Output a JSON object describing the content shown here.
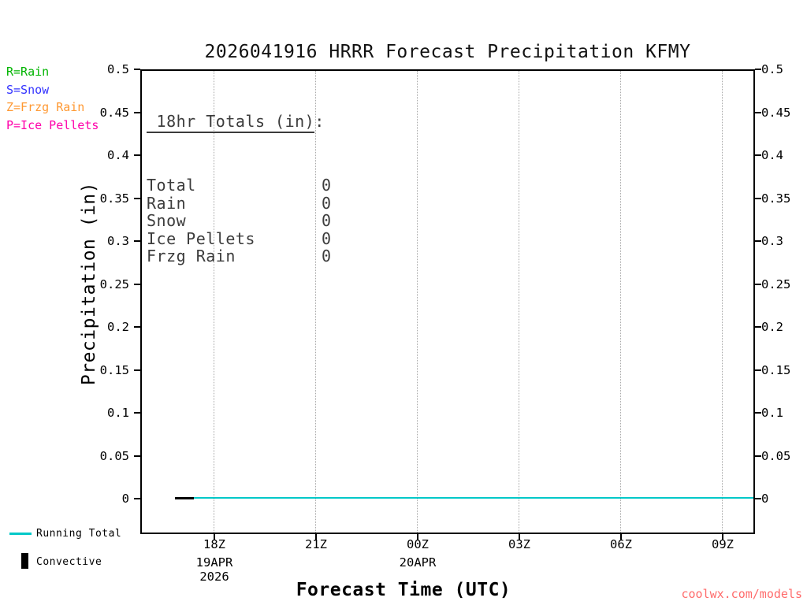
{
  "title": "2026041916 HRRR Forecast Precipitation KFMY",
  "watermark": "coolwx.com/models",
  "colors": {
    "running_total": "#00c8c8",
    "convective": "#000000",
    "rain": "#00b400",
    "snow": "#3333ff",
    "frzg_rain": "#ff9933",
    "ice_pellets": "#ff00aa",
    "watermark": "#ff6b6b",
    "grid": "#a8a8a8"
  },
  "legend_top": [
    {
      "label": "R=Rain",
      "color": "#00b400"
    },
    {
      "label": "S=Snow",
      "color": "#3333ff"
    },
    {
      "label": "Z=Frzg Rain",
      "color": "#ff9933"
    },
    {
      "label": "P=Ice Pellets",
      "color": "#ff00aa"
    }
  ],
  "totals_box": {
    "title": " 18hr Totals (in)",
    "colon": ":",
    "rows": [
      {
        "label": "Total",
        "value": "0"
      },
      {
        "label": "Rain",
        "value": "0"
      },
      {
        "label": "Snow",
        "value": "0"
      },
      {
        "label": "Ice Pellets",
        "value": "0"
      },
      {
        "label": "Frzg Rain",
        "value": "0"
      }
    ]
  },
  "axes": {
    "ylabel": "Precipitation (in)",
    "xlabel": "Forecast Time (UTC)",
    "yticks": [
      "0",
      "0.05",
      "0.1",
      "0.15",
      "0.2",
      "0.25",
      "0.3",
      "0.35",
      "0.4",
      "0.45",
      "0.5"
    ],
    "xticks": [
      "18Z",
      "21Z",
      "00Z",
      "03Z",
      "06Z",
      "09Z"
    ],
    "xdates": [
      [
        "19APR",
        "2026"
      ],
      [],
      [
        "20APR"
      ],
      [],
      [],
      []
    ]
  },
  "legend_bottom": [
    {
      "label": "Running Total",
      "color": "#00c8c8",
      "swatch": "line"
    },
    {
      "label": "Convective",
      "color": "#000000",
      "swatch": "bar"
    }
  ],
  "chart_data": {
    "type": "line",
    "title": "2026041916 HRRR Forecast Precipitation KFMY",
    "xlabel": "Forecast Time (UTC)",
    "ylabel": "Precipitation (in)",
    "ylim": [
      0,
      0.5
    ],
    "ytick_interval": 0.05,
    "grid": "vertical-dotted",
    "legend_position": "bottom-left-outside",
    "categories": [
      "18Z",
      "21Z",
      "00Z",
      "03Z",
      "06Z",
      "09Z"
    ],
    "x_dates": [
      {
        "tick": "18Z",
        "labels": [
          "19APR",
          "2026"
        ]
      },
      {
        "tick": "00Z",
        "labels": [
          "20APR"
        ]
      }
    ],
    "series": [
      {
        "name": "Running Total",
        "color": "#00c8c8",
        "values": [
          0,
          0,
          0,
          0,
          0,
          0
        ]
      },
      {
        "name": "Convective",
        "color": "#000000",
        "values": [
          0,
          0,
          0,
          0,
          0,
          0
        ]
      }
    ],
    "totals_18hr": {
      "Total": 0,
      "Rain": 0,
      "Snow": 0,
      "Ice Pellets": 0,
      "Frzg Rain": 0
    }
  }
}
